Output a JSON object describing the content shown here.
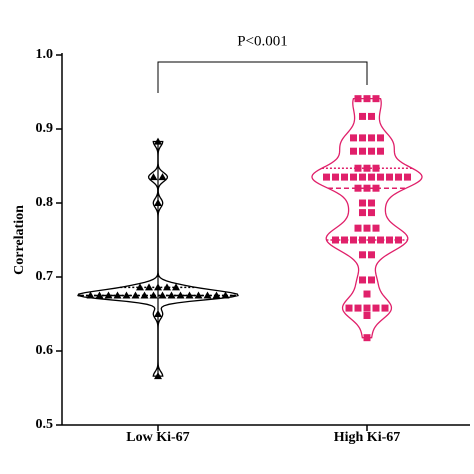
{
  "chart_data": {
    "type": "violin",
    "y_label": "Correlation",
    "categories": [
      "Low Ki-67",
      "High Ki-67"
    ],
    "series": [
      {
        "name": "Low Ki-67",
        "color": "#000000",
        "marker": "triangle",
        "values": [
          0.883,
          0.835,
          0.835,
          0.8,
          0.686,
          0.686,
          0.686,
          0.686,
          0.686,
          0.675,
          0.675,
          0.675,
          0.675,
          0.675,
          0.675,
          0.675,
          0.675,
          0.675,
          0.675,
          0.675,
          0.675,
          0.675,
          0.675,
          0.675,
          0.675,
          0.65,
          0.566
        ]
      },
      {
        "name": "High Ki-67",
        "color": "#e0206a",
        "marker": "square",
        "values": [
          0.941,
          0.941,
          0.941,
          0.917,
          0.917,
          0.888,
          0.888,
          0.888,
          0.888,
          0.87,
          0.87,
          0.87,
          0.87,
          0.847,
          0.847,
          0.847,
          0.835,
          0.835,
          0.835,
          0.835,
          0.835,
          0.835,
          0.835,
          0.835,
          0.835,
          0.835,
          0.82,
          0.82,
          0.82,
          0.8,
          0.8,
          0.787,
          0.787,
          0.766,
          0.766,
          0.766,
          0.75,
          0.75,
          0.75,
          0.75,
          0.75,
          0.75,
          0.75,
          0.75,
          0.73,
          0.73,
          0.696,
          0.696,
          0.677,
          0.658,
          0.658,
          0.658,
          0.658,
          0.658,
          0.648,
          0.618
        ]
      }
    ],
    "annotation": "P<0.001",
    "ylim": [
      0.5,
      1.0
    ],
    "yticks": [
      0.5,
      0.6,
      0.7,
      0.8,
      0.9,
      {
        "value": 1.0,
        "label": "1.0"
      }
    ]
  }
}
